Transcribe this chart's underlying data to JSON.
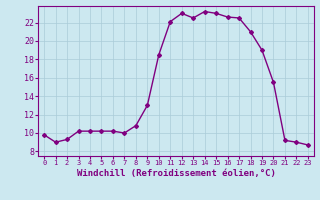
{
  "x": [
    0,
    1,
    2,
    3,
    4,
    5,
    6,
    7,
    8,
    9,
    10,
    11,
    12,
    13,
    14,
    15,
    16,
    17,
    18,
    19,
    20,
    21,
    22,
    23
  ],
  "y": [
    9.8,
    9.0,
    9.3,
    10.2,
    10.2,
    10.2,
    10.2,
    10.0,
    10.8,
    13.0,
    18.5,
    22.1,
    23.0,
    22.5,
    23.2,
    23.0,
    22.6,
    22.5,
    21.0,
    19.0,
    15.5,
    9.2,
    9.0,
    8.7
  ],
  "line_color": "#800080",
  "marker": "D",
  "marker_size": 2.0,
  "bg_color": "#cce8f0",
  "grid_color": "#aaccd8",
  "xlabel": "Windchill (Refroidissement éolien,°C)",
  "xlabel_fontsize": 6.5,
  "ylabel_ticks": [
    8,
    10,
    12,
    14,
    16,
    18,
    20,
    22
  ],
  "xlim": [
    -0.5,
    23.5
  ],
  "ylim": [
    7.5,
    23.8
  ],
  "xtick_fontsize": 5.0,
  "ytick_fontsize": 6.0,
  "line_width": 1.0
}
